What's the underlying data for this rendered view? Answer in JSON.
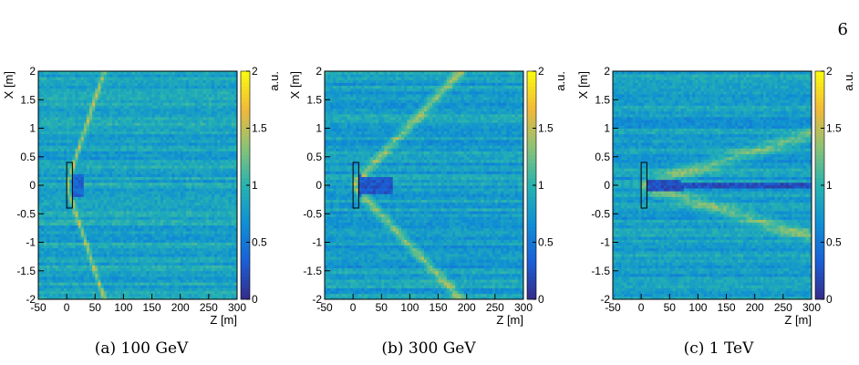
{
  "page_number": "6",
  "panels": [
    {
      "caption": "(a) 100 GeV"
    },
    {
      "caption": "(b) 300 GeV"
    },
    {
      "caption": "(c) 1 TeV"
    }
  ],
  "chart_data": [
    {
      "type": "heatmap",
      "caption": "(a) 100 GeV",
      "xlabel": "Z [m]",
      "ylabel": "X [m]",
      "zlabel": "a.u.",
      "xlim": [
        -50,
        300
      ],
      "ylim": [
        -2,
        2
      ],
      "zlim": [
        0,
        2
      ],
      "xticks": [
        "-50",
        "0",
        "50",
        "100",
        "150",
        "200",
        "250",
        "300"
      ],
      "yticks": [
        "-2",
        "-1.5",
        "-1",
        "-0.5",
        "0",
        "0.5",
        "1",
        "1.5",
        "2"
      ],
      "zticks": [
        "0",
        "0.5",
        "1",
        "1.5",
        "2"
      ],
      "colormap": [
        "#352a87",
        "#1b5fd6",
        "#0f8fd4",
        "#27b3b0",
        "#8bc276",
        "#f1b93a",
        "#f9fb0e"
      ],
      "background_level": 0.85,
      "detector_box": {
        "z": [
          0,
          10
        ],
        "x": [
          -0.4,
          0.4
        ]
      },
      "features": {
        "ring_slope": 0.03,
        "ring_level": 1.45,
        "ring_zmax": 75,
        "shadow_zmax": 30,
        "shadow_width": 0.22,
        "shadow_level": 0.25
      }
    },
    {
      "type": "heatmap",
      "caption": "(b) 300 GeV",
      "xlabel": "Z [m]",
      "ylabel": "X [m]",
      "zlabel": "a.u.",
      "xlim": [
        -50,
        300
      ],
      "ylim": [
        -2,
        2
      ],
      "zlim": [
        0,
        2
      ],
      "xticks": [
        "-50",
        "0",
        "50",
        "100",
        "150",
        "200",
        "250",
        "300"
      ],
      "yticks": [
        "-2",
        "-1.5",
        "-1",
        "-0.5",
        "0",
        "0.5",
        "1",
        "1.5",
        "2"
      ],
      "zticks": [
        "0",
        "0.5",
        "1",
        "1.5",
        "2"
      ],
      "colormap": [
        "#352a87",
        "#1b5fd6",
        "#0f8fd4",
        "#27b3b0",
        "#8bc276",
        "#f1b93a",
        "#f9fb0e"
      ],
      "background_level": 0.8,
      "detector_box": {
        "z": [
          0,
          10
        ],
        "x": [
          -0.4,
          0.4
        ]
      },
      "features": {
        "ring_slope": 0.0105,
        "ring_level": 1.35,
        "ring_zmax": 200,
        "shadow_zmax": 70,
        "shadow_width": 0.18,
        "shadow_level": 0.15
      }
    },
    {
      "type": "heatmap",
      "caption": "(c) 1 TeV",
      "xlabel": "Z [m]",
      "ylabel": "X [m]",
      "zlabel": "a.u.",
      "xlim": [
        -50,
        300
      ],
      "ylim": [
        -2,
        2
      ],
      "zlim": [
        0,
        2
      ],
      "xticks": [
        "-50",
        "0",
        "50",
        "100",
        "150",
        "200",
        "250",
        "300"
      ],
      "yticks": [
        "-2",
        "-1.5",
        "-1",
        "-0.5",
        "0",
        "0.5",
        "1",
        "1.5",
        "2"
      ],
      "zticks": [
        "0",
        "0.5",
        "1",
        "1.5",
        "2"
      ],
      "colormap": [
        "#352a87",
        "#1b5fd6",
        "#0f8fd4",
        "#27b3b0",
        "#8bc276",
        "#f1b93a",
        "#f9fb0e"
      ],
      "background_level": 0.8,
      "detector_box": {
        "z": [
          0,
          10
        ],
        "x": [
          -0.4,
          0.4
        ]
      },
      "features": {
        "ring_slope": 0.003,
        "ring_level": 1.25,
        "ring_zmax": 300,
        "shadow_zmax": 300,
        "shadow_width": 0.08,
        "shadow_level": 0.1
      }
    }
  ]
}
